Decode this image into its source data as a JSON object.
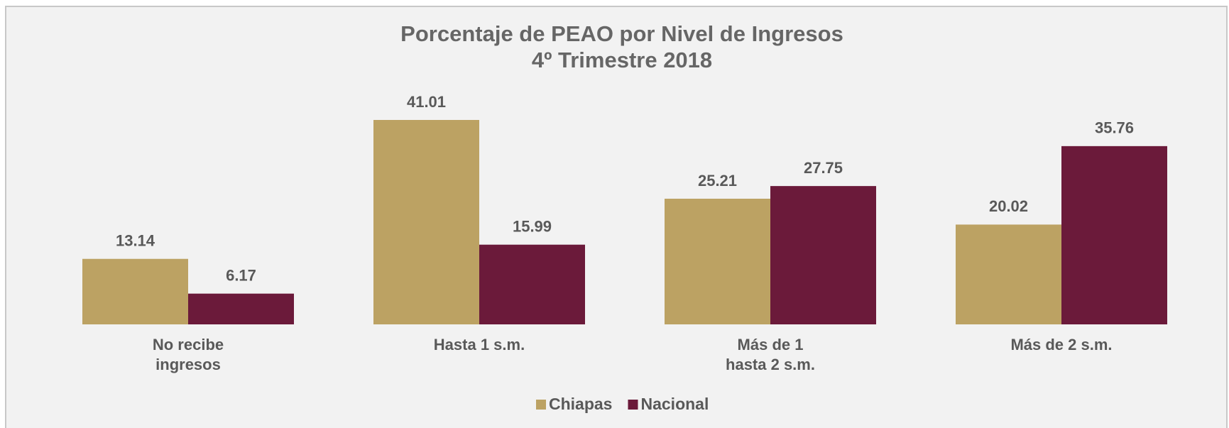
{
  "chart_data": {
    "type": "bar",
    "title": "Porcentaje de PEAO por Nivel de Ingresos",
    "subtitle": "4º Trimestre 2018",
    "categories": [
      [
        "No recibe",
        "ingresos"
      ],
      [
        "Hasta 1 s.m."
      ],
      [
        "Más de 1",
        "hasta 2 s.m."
      ],
      [
        "Más de 2 s.m."
      ]
    ],
    "series": [
      {
        "name": "Chiapas",
        "color": "#bca263",
        "values": [
          13.14,
          41.01,
          25.21,
          20.02
        ]
      },
      {
        "name": "Nacional",
        "color": "#6b1a3a",
        "values": [
          6.17,
          15.99,
          27.75,
          35.76
        ]
      }
    ],
    "legend": "bottom"
  }
}
